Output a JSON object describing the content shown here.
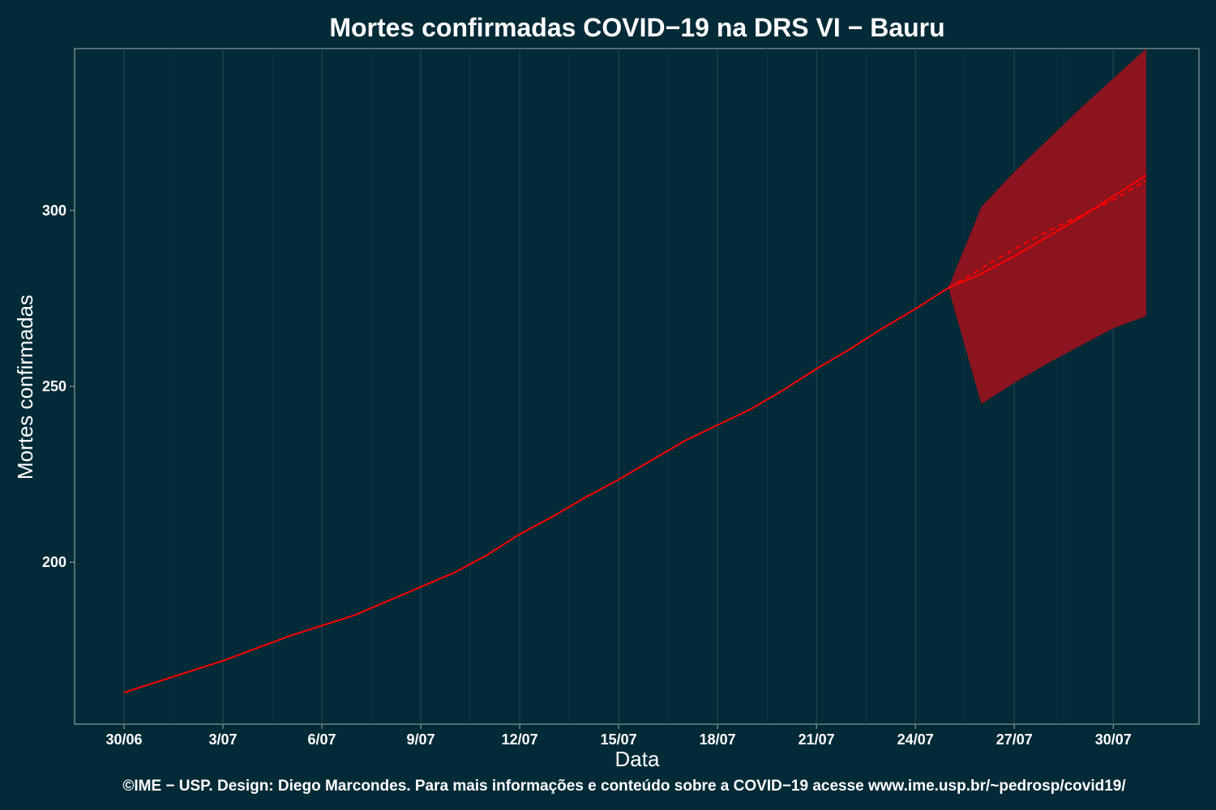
{
  "chart_data": {
    "type": "line",
    "title": "Mortes confirmadas COVID−19 na DRS VI − Bauru",
    "xlabel": "Data",
    "ylabel": "Mortes confirmadas",
    "caption": "©IME − USP. Design: Diego Marcondes. Para mais informações e conteúdo sobre a COVID−19 acesse www.ime.usp.br/~pedrosp/covid19/",
    "x_tick_labels": [
      "30/06",
      "3/07",
      "6/07",
      "9/07",
      "12/07",
      "15/07",
      "18/07",
      "21/07",
      "24/07",
      "27/07",
      "30/07"
    ],
    "x_tick_days": [
      0,
      3,
      6,
      9,
      12,
      15,
      18,
      21,
      24,
      27,
      30
    ],
    "y_ticks": [
      200,
      250,
      300
    ],
    "xlim_days": [
      -1.5,
      32.6
    ],
    "ylim": [
      154,
      346
    ],
    "grid": true,
    "series": [
      {
        "name": "",
        "style": "solid",
        "color": "#ff0000",
        "x_days": [
          0,
          1,
          2,
          3,
          4,
          5,
          6,
          7,
          8,
          9,
          10,
          11,
          12,
          13,
          14,
          15,
          16,
          17,
          18,
          19,
          20,
          21,
          22,
          23,
          24,
          25
        ],
        "values": [
          163,
          166,
          169,
          172,
          175.5,
          179,
          182,
          185,
          189,
          193,
          197,
          202,
          208,
          213,
          218.5,
          223.5,
          229,
          234.5,
          239,
          243.5,
          249,
          255,
          260.5,
          266.5,
          272,
          278
        ]
      },
      {
        "name": "",
        "style": "solid",
        "color": "#ff0000",
        "x_days": [
          25,
          26,
          27,
          28,
          29,
          30,
          31
        ],
        "values": [
          278,
          282,
          287,
          292.5,
          298,
          304,
          310
        ]
      },
      {
        "name": "",
        "style": "dashed",
        "color": "#ff0000",
        "x_days": [
          25,
          26,
          27,
          28,
          29,
          30,
          31
        ],
        "values": [
          278,
          283.5,
          289,
          294,
          298.5,
          303,
          308.5
        ]
      }
    ],
    "band": {
      "name": "",
      "color": "#8b141e",
      "x_days": [
        25,
        26,
        27,
        28,
        29,
        30,
        31
      ],
      "lower": [
        278,
        245,
        251,
        256.5,
        261.5,
        266.5,
        270
      ],
      "upper": [
        278,
        301,
        311,
        320,
        329,
        337.5,
        346
      ]
    }
  }
}
